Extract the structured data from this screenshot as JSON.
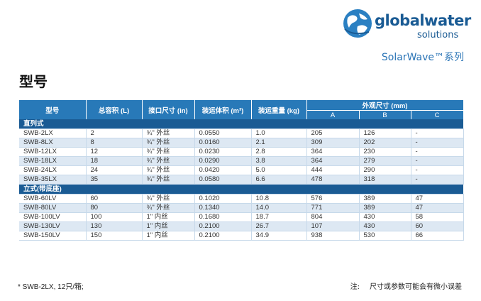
{
  "brand": {
    "name": "globalwater",
    "sub": "solutions",
    "series": "SolarWave™系列",
    "colors": {
      "primary": "#1a5b94",
      "accent": "#2879b8",
      "row_alt": "#dde8f3"
    }
  },
  "page_title": "型号",
  "table": {
    "headers": {
      "model": "型号",
      "capacity": "总容积 (L)",
      "connection": "接口尺寸 (in)",
      "ship_volume": "装运体积 (m³)",
      "ship_weight": "装运重量 (kg)",
      "dimensions": "外观尺寸 (mm)",
      "dim_a": "A",
      "dim_b": "B",
      "dim_c": "C"
    },
    "sections": [
      {
        "title": "直列式",
        "rows": [
          [
            "SWB-2LX",
            "2",
            "¾\" 外丝",
            "0.0550",
            "1.0",
            "205",
            "126",
            "-"
          ],
          [
            "SWB-8LX",
            "8",
            "¾\" 外丝",
            "0.0160",
            "2.1",
            "309",
            "202",
            "-"
          ],
          [
            "SWB-12LX",
            "12",
            "¾\" 外丝",
            "0.0230",
            "2.8",
            "364",
            "230",
            "-"
          ],
          [
            "SWB-18LX",
            "18",
            "¾\" 外丝",
            "0.0290",
            "3.8",
            "364",
            "279",
            "-"
          ],
          [
            "SWB-24LX",
            "24",
            "¾\" 外丝",
            "0.0420",
            "5.0",
            "444",
            "290",
            "-"
          ],
          [
            "SWB-35LX",
            "35",
            "¾\" 外丝",
            "0.0580",
            "6.6",
            "478",
            "318",
            "-"
          ]
        ]
      },
      {
        "title": "立式(带底座)",
        "rows": [
          [
            "SWB-60LV",
            "60",
            "¾\" 外丝",
            "0.1020",
            "10.8",
            "576",
            "389",
            "47"
          ],
          [
            "SWB-80LV",
            "80",
            "¾\" 外丝",
            "0.1340",
            "14.0",
            "771",
            "389",
            "47"
          ],
          [
            "SWB-100LV",
            "100",
            "1\" 内丝",
            "0.1680",
            "18.7",
            "804",
            "430",
            "58"
          ],
          [
            "SWB-130LV",
            "130",
            "1\" 内丝",
            "0.2100",
            "26.7",
            "107",
            "430",
            "60"
          ],
          [
            "SWB-150LV",
            "150",
            "1\" 内丝",
            "0.2100",
            "34.9",
            "938",
            "530",
            "66"
          ]
        ]
      }
    ]
  },
  "footnote": "* SWB-2LX, 12只/箱;",
  "note_label": "注:",
  "note_text": "尺寸或参数可能会有微小误差"
}
